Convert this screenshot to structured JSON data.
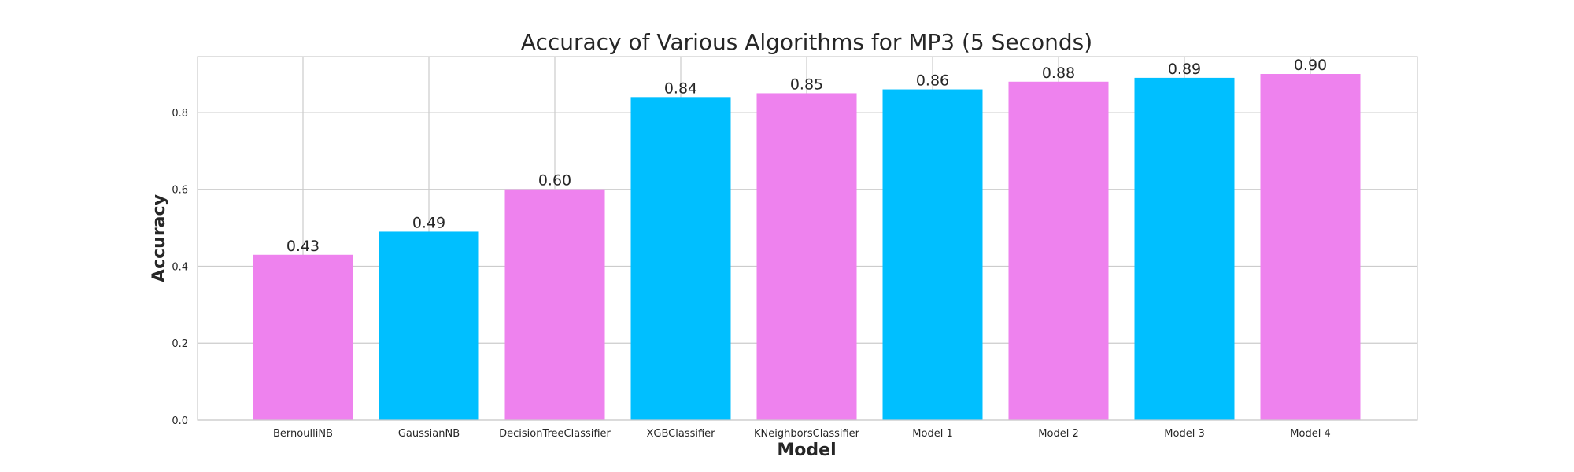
{
  "chart_data": {
    "type": "bar",
    "title": "Accuracy of Various Algorithms for MP3 (5 Seconds)",
    "xlabel": "Model",
    "ylabel": "Accuracy",
    "categories": [
      "BernoulliNB",
      "GaussianNB",
      "DecisionTreeClassifier",
      "XGBClassifier",
      "KNeighborsClassifier",
      "Model 1",
      "Model 2",
      "Model 3",
      "Model 4"
    ],
    "values": [
      0.43,
      0.49,
      0.6,
      0.84,
      0.85,
      0.86,
      0.88,
      0.89,
      0.9
    ],
    "value_labels": [
      "0.43",
      "0.49",
      "0.60",
      "0.84",
      "0.85",
      "0.86",
      "0.88",
      "0.89",
      "0.90"
    ],
    "bar_colors": [
      "#ee82ee",
      "#00bfff",
      "#ee82ee",
      "#00bfff",
      "#ee82ee",
      "#00bfff",
      "#ee82ee",
      "#00bfff",
      "#ee82ee"
    ],
    "yticks": [
      0.0,
      0.2,
      0.4,
      0.6,
      0.8
    ],
    "ytick_labels": [
      "0.0",
      "0.2",
      "0.4",
      "0.6",
      "0.8"
    ],
    "ylim": [
      0,
      0.945
    ],
    "grid": true,
    "colors": {
      "grid": "#cccccc",
      "frame": "#cccccc",
      "text": "#262626"
    }
  }
}
